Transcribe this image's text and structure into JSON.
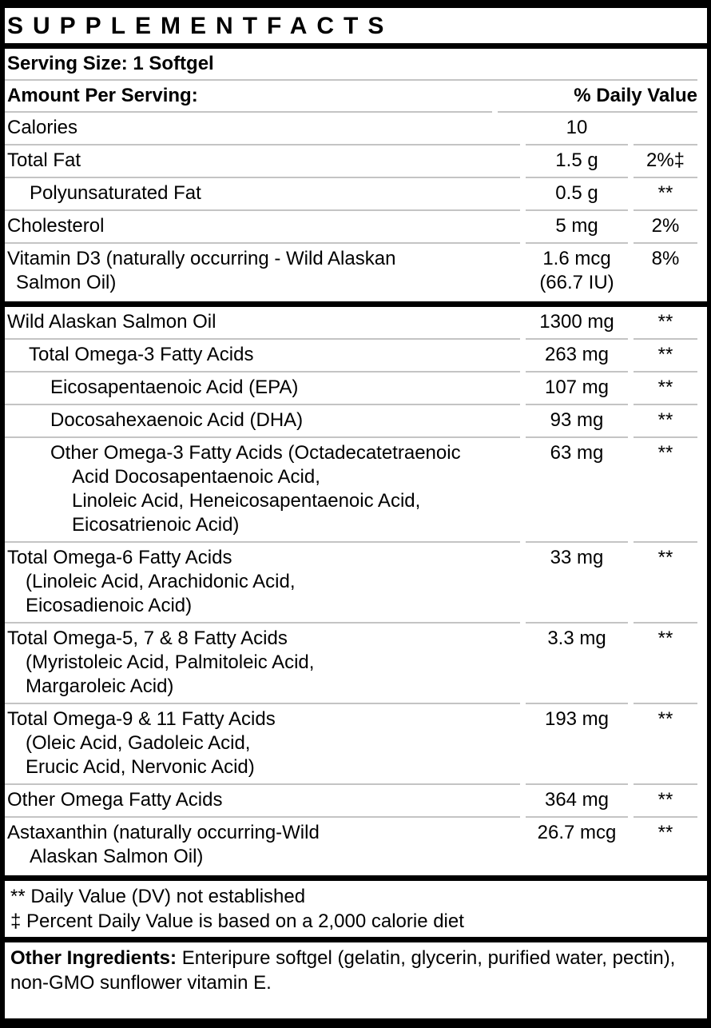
{
  "title": "SUPPLEMENTFACTS",
  "serving_size": "Serving Size: 1 Softgel",
  "header": {
    "left": "Amount Per Serving:",
    "right": "% Daily Value"
  },
  "colors": {
    "border": "#000000",
    "row_line": "#c4c4c4",
    "text": "#000000",
    "background": "#ffffff"
  },
  "rows": [
    {
      "name_lines": [
        {
          "text": "Calories",
          "indent": 3
        }
      ],
      "amount_lines": [
        "10"
      ],
      "dv": "",
      "divider_after": "thin"
    },
    {
      "name_lines": [
        {
          "text": "Total Fat",
          "indent": 3
        }
      ],
      "amount_lines": [
        "1.5 g"
      ],
      "dv": "2%‡",
      "divider_after": "thin"
    },
    {
      "name_lines": [
        {
          "text": "Polyunsaturated Fat",
          "indent": 31
        }
      ],
      "amount_lines": [
        "0.5 g"
      ],
      "dv": "**",
      "divider_after": "thin"
    },
    {
      "name_lines": [
        {
          "text": "Cholesterol",
          "indent": 3
        }
      ],
      "amount_lines": [
        "5 mg"
      ],
      "dv": "2%",
      "divider_after": "thin"
    },
    {
      "name_lines": [
        {
          "text": "Vitamin D3 (naturally occurring - Wild Alaskan",
          "indent": 3
        },
        {
          "text": "Salmon Oil)",
          "indent": 14
        }
      ],
      "amount_lines": [
        "1.6 mcg",
        "(66.7 IU)"
      ],
      "dv": "8%",
      "divider_after": "thick"
    },
    {
      "name_lines": [
        {
          "text": "Wild Alaskan Salmon Oil",
          "indent": 3
        }
      ],
      "amount_lines": [
        "1300 mg"
      ],
      "dv": "**",
      "divider_after": "thin"
    },
    {
      "name_lines": [
        {
          "text": "Total Omega-3 Fatty Acids",
          "indent": 30
        }
      ],
      "amount_lines": [
        "263 mg"
      ],
      "dv": "**",
      "divider_after": "thin"
    },
    {
      "name_lines": [
        {
          "text": "Eicosapentaenoic Acid (EPA)",
          "indent": 57
        }
      ],
      "amount_lines": [
        "107 mg"
      ],
      "dv": "**",
      "divider_after": "thin"
    },
    {
      "name_lines": [
        {
          "text": "Docosahexaenoic Acid (DHA)",
          "indent": 57
        }
      ],
      "amount_lines": [
        "93 mg"
      ],
      "dv": "**",
      "divider_after": "thin"
    },
    {
      "name_lines": [
        {
          "text": "Other Omega-3 Fatty Acids (Octadecatetraenoic",
          "indent": 57
        },
        {
          "text": "Acid Docosapentaenoic Acid,",
          "indent": 84
        },
        {
          "text": "Linoleic Acid, Heneicosapentaenoic Acid,",
          "indent": 84
        },
        {
          "text": "Eicosatrienoic Acid)",
          "indent": 84
        }
      ],
      "amount_lines": [
        "63 mg"
      ],
      "dv": "**",
      "divider_after": "thin"
    },
    {
      "name_lines": [
        {
          "text": "Total Omega-6 Fatty Acids",
          "indent": 3
        },
        {
          "text": "(Linoleic Acid, Arachidonic Acid,",
          "indent": 26
        },
        {
          "text": "Eicosadienoic Acid)",
          "indent": 26
        }
      ],
      "amount_lines": [
        "33 mg"
      ],
      "dv": "**",
      "divider_after": "thin"
    },
    {
      "name_lines": [
        {
          "text": "Total Omega-5, 7 & 8 Fatty Acids",
          "indent": 3
        },
        {
          "text": "(Myristoleic Acid, Palmitoleic Acid,",
          "indent": 26
        },
        {
          "text": "Margaroleic Acid)",
          "indent": 26
        }
      ],
      "amount_lines": [
        "3.3 mg"
      ],
      "dv": "**",
      "divider_after": "thin"
    },
    {
      "name_lines": [
        {
          "text": "Total Omega-9 & 11 Fatty Acids",
          "indent": 3
        },
        {
          "text": "(Oleic Acid, Gadoleic Acid,",
          "indent": 26
        },
        {
          "text": "Erucic Acid, Nervonic Acid)",
          "indent": 26
        }
      ],
      "amount_lines": [
        "193 mg"
      ],
      "dv": "**",
      "divider_after": "thin"
    },
    {
      "name_lines": [
        {
          "text": "Other Omega Fatty Acids",
          "indent": 3
        }
      ],
      "amount_lines": [
        "364 mg"
      ],
      "dv": "**",
      "divider_after": "thin"
    },
    {
      "name_lines": [
        {
          "text": "Astaxanthin (naturally occurring-Wild",
          "indent": 3
        },
        {
          "text": "Alaskan Salmon Oil)",
          "indent": 31
        }
      ],
      "amount_lines": [
        "26.7 mcg"
      ],
      "dv": "**",
      "divider_after": "thick"
    }
  ],
  "footnotes": [
    "** Daily Value (DV) not established",
    "‡ Percent Daily Value is based on a 2,000 calorie diet"
  ],
  "other_ingredients": {
    "label": "Other Ingredients:",
    "text": " Enteripure softgel (gelatin, glycerin, purified water, pectin), non-GMO sunflower vitamin E."
  }
}
